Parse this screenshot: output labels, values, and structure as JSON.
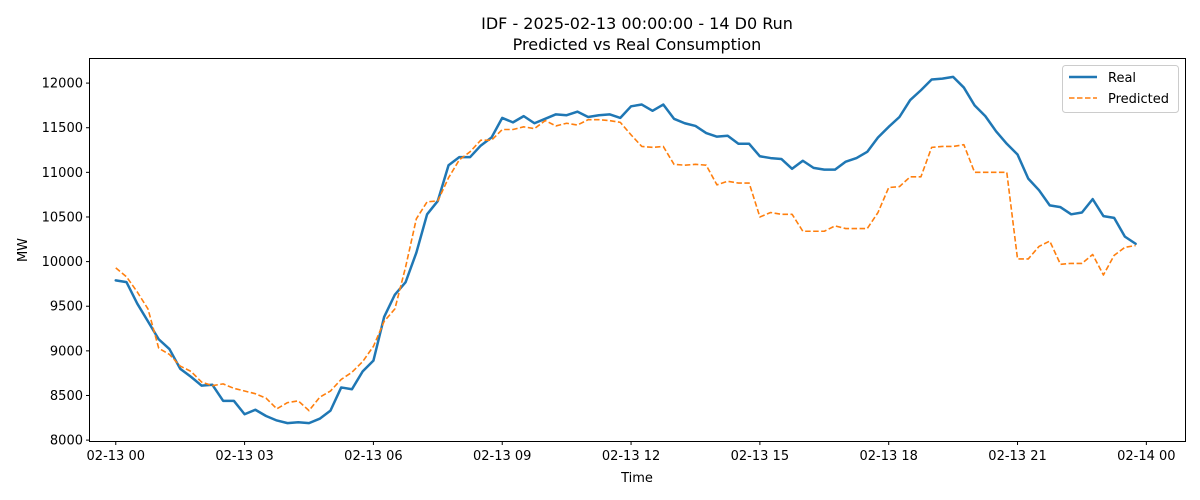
{
  "chart_data": {
    "type": "line",
    "title": "IDF - 2025-02-13 00:00:00 - 14 D0 Run",
    "subtitle": "Predicted vs Real Consumption",
    "xlabel": "Time",
    "ylabel": "MW",
    "x_unit": "hours since 2025-02-13 00:00",
    "xlim": [
      -0.6,
      24.9
    ],
    "ylim": [
      7990,
      12270
    ],
    "x_ticks": [
      {
        "value": 0,
        "label": "02-13 00"
      },
      {
        "value": 3,
        "label": "02-13 03"
      },
      {
        "value": 6,
        "label": "02-13 06"
      },
      {
        "value": 9,
        "label": "02-13 09"
      },
      {
        "value": 12,
        "label": "02-13 12"
      },
      {
        "value": 15,
        "label": "02-13 15"
      },
      {
        "value": 18,
        "label": "02-13 18"
      },
      {
        "value": 21,
        "label": "02-13 21"
      },
      {
        "value": 24,
        "label": "02-14 00"
      }
    ],
    "y_ticks": [
      8000,
      8500,
      9000,
      9500,
      10000,
      10500,
      11000,
      11500,
      12000
    ],
    "grid": false,
    "legend_position": "top-right",
    "series": [
      {
        "name": "Real",
        "color": "#1f77b4",
        "style": "solid",
        "x": [
          0,
          0.25,
          0.5,
          0.75,
          1,
          1.25,
          1.5,
          1.75,
          2,
          2.25,
          2.5,
          2.75,
          3,
          3.25,
          3.5,
          3.75,
          4,
          4.25,
          4.5,
          4.75,
          5,
          5.25,
          5.5,
          5.75,
          6,
          6.25,
          6.5,
          6.75,
          7,
          7.25,
          7.5,
          7.75,
          8,
          8.25,
          8.5,
          8.75,
          9,
          9.25,
          9.5,
          9.75,
          10,
          10.25,
          10.5,
          10.75,
          11,
          11.25,
          11.5,
          11.75,
          12,
          12.25,
          12.5,
          12.75,
          13,
          13.25,
          13.5,
          13.75,
          14,
          14.25,
          14.5,
          14.75,
          15,
          15.25,
          15.5,
          15.75,
          16,
          16.25,
          16.5,
          16.75,
          17,
          17.25,
          17.5,
          17.75,
          18,
          18.25,
          18.5,
          18.75,
          19,
          19.25,
          19.5,
          19.75,
          20,
          20.25,
          20.5,
          20.75,
          21,
          21.25,
          21.5,
          21.75,
          22,
          22.25,
          22.5,
          22.75,
          23,
          23.25,
          23.5,
          23.75
        ],
        "values": [
          9790,
          9770,
          9530,
          9330,
          9130,
          9020,
          8800,
          8710,
          8610,
          8620,
          8440,
          8440,
          8290,
          8340,
          8270,
          8220,
          8190,
          8200,
          8190,
          8240,
          8330,
          8590,
          8570,
          8770,
          8890,
          9380,
          9630,
          9770,
          10100,
          10530,
          10680,
          11080,
          11170,
          11170,
          11300,
          11390,
          11610,
          11560,
          11630,
          11550,
          11600,
          11650,
          11640,
          11680,
          11620,
          11640,
          11650,
          11610,
          11740,
          11760,
          11690,
          11760,
          11600,
          11550,
          11520,
          11440,
          11400,
          11410,
          11320,
          11320,
          11180,
          11160,
          11150,
          11040,
          11130,
          11050,
          11030,
          11030,
          11120,
          11160,
          11230,
          11390,
          11510,
          11620,
          11810,
          11920,
          12040,
          12050,
          12070,
          11950,
          11750,
          11630,
          11460,
          11320,
          11200,
          10930,
          10800,
          10630,
          10610,
          10530,
          10550,
          10700,
          10510,
          10490,
          10280,
          10200
        ]
      },
      {
        "name": "Predicted",
        "color": "#ff7f0e",
        "style": "dashed",
        "x": [
          0,
          0.25,
          0.5,
          0.75,
          1,
          1.25,
          1.5,
          1.75,
          2,
          2.25,
          2.5,
          2.75,
          3,
          3.25,
          3.5,
          3.75,
          4,
          4.25,
          4.5,
          4.75,
          5,
          5.25,
          5.5,
          5.75,
          6,
          6.25,
          6.5,
          6.75,
          7,
          7.25,
          7.5,
          7.75,
          8,
          8.25,
          8.5,
          8.75,
          9,
          9.25,
          9.5,
          9.75,
          10,
          10.25,
          10.5,
          10.75,
          11,
          11.25,
          11.5,
          11.75,
          12,
          12.25,
          12.5,
          12.75,
          13,
          13.25,
          13.5,
          13.75,
          14,
          14.25,
          14.5,
          14.75,
          15,
          15.25,
          15.5,
          15.75,
          16,
          16.25,
          16.5,
          16.75,
          17,
          17.25,
          17.5,
          17.75,
          18,
          18.25,
          18.5,
          18.75,
          19,
          19.25,
          19.5,
          19.75,
          20,
          20.25,
          20.5,
          20.75,
          21,
          21.25,
          21.5,
          21.75,
          22,
          22.25,
          22.5,
          22.75,
          23,
          23.25,
          23.5,
          23.75
        ],
        "values": [
          9930,
          9830,
          9660,
          9470,
          9030,
          8960,
          8830,
          8770,
          8650,
          8610,
          8630,
          8580,
          8550,
          8520,
          8470,
          8350,
          8420,
          8440,
          8330,
          8480,
          8550,
          8680,
          8760,
          8880,
          9050,
          9330,
          9470,
          9940,
          10480,
          10670,
          10680,
          10940,
          11140,
          11230,
          11360,
          11360,
          11480,
          11480,
          11510,
          11490,
          11580,
          11520,
          11550,
          11530,
          11590,
          11590,
          11580,
          11560,
          11420,
          11290,
          11280,
          11290,
          11090,
          11080,
          11090,
          11080,
          10860,
          10900,
          10880,
          10880,
          10500,
          10550,
          10530,
          10530,
          10340,
          10340,
          10340,
          10400,
          10370,
          10370,
          10370,
          10550,
          10830,
          10840,
          10950,
          10950,
          11280,
          11290,
          11290,
          11310,
          11000,
          11000,
          11000,
          11000,
          10030,
          10030,
          10170,
          10230,
          9970,
          9980,
          9980,
          10080,
          9850,
          10070,
          10160,
          10180
        ]
      }
    ]
  }
}
